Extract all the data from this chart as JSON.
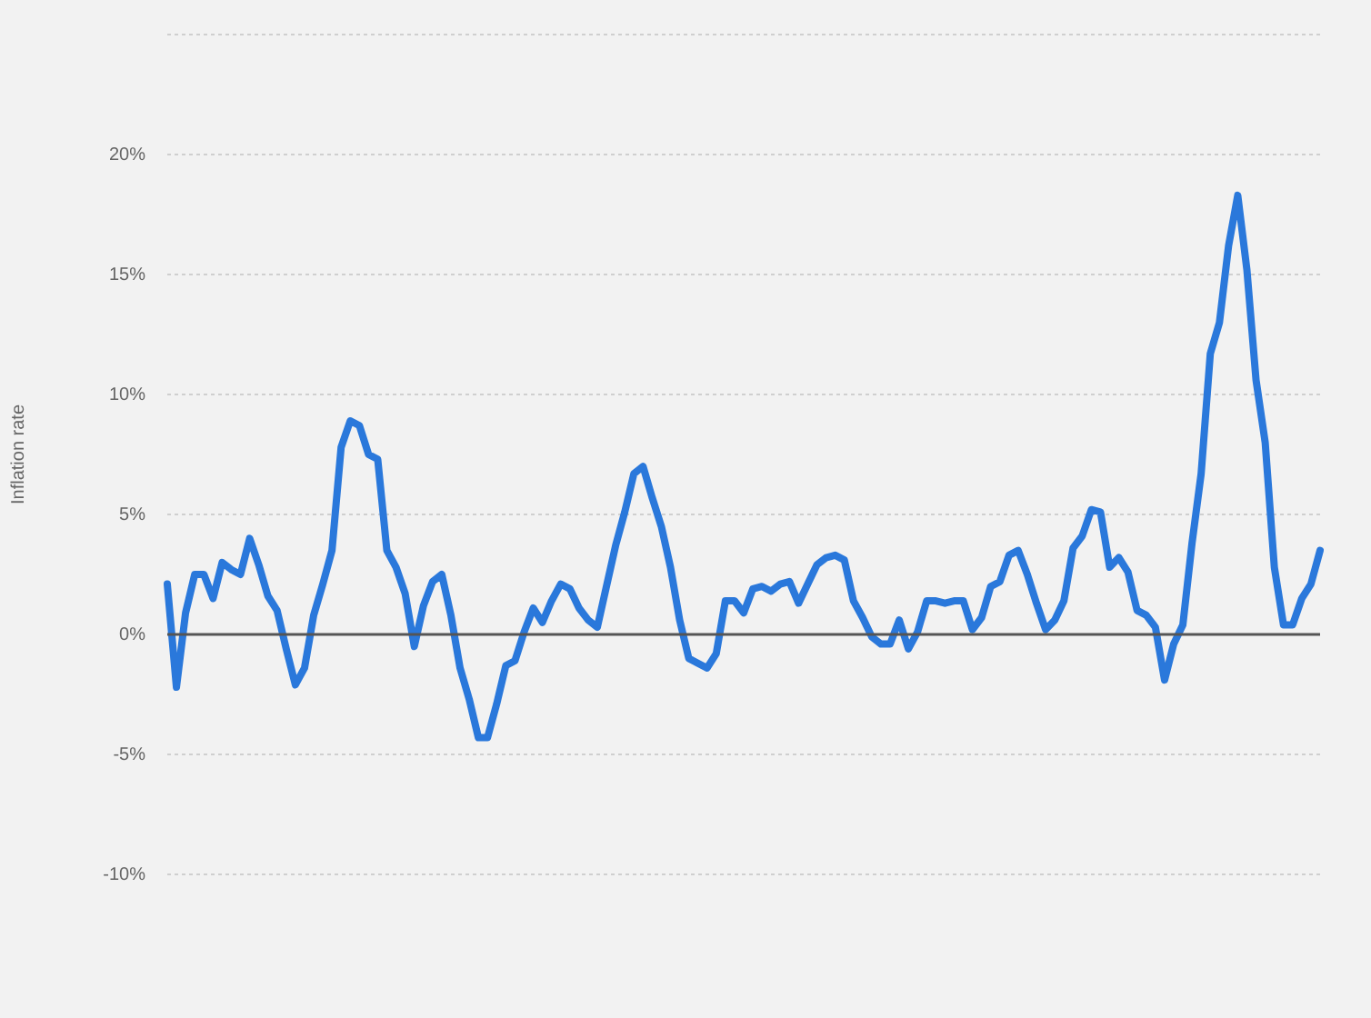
{
  "chart_data": {
    "type": "line",
    "ylabel": "Inflation rate",
    "categories": [
      null,
      null,
      null,
      null,
      null,
      null,
      null,
      null,
      null,
      null,
      null,
      null,
      null,
      null,
      null,
      null,
      null,
      null,
      null,
      null,
      null,
      null,
      null,
      null,
      null,
      null,
      null,
      null,
      null,
      null,
      null,
      null,
      null,
      null,
      null,
      null,
      null,
      null,
      null,
      null,
      null,
      null,
      null,
      null,
      null,
      null,
      null,
      null,
      null,
      null,
      null,
      null,
      null,
      null,
      null,
      null,
      null,
      null,
      null,
      null,
      null,
      null,
      null,
      null,
      null,
      null,
      null,
      null,
      null,
      null,
      null,
      null,
      null,
      null,
      null,
      null,
      null,
      null,
      null,
      null,
      null,
      null,
      null,
      null,
      null,
      null,
      null,
      null,
      null,
      null,
      null,
      null,
      null,
      null,
      null,
      null,
      null,
      null,
      null,
      null,
      null,
      null,
      null,
      null,
      null,
      null,
      null,
      null,
      null,
      null,
      null,
      null,
      null,
      null,
      null,
      null,
      null,
      null,
      null,
      null,
      null,
      null,
      null,
      null,
      null,
      null,
      null
    ],
    "series": [
      {
        "color": "#2a78db",
        "values": [
          2.1,
          -2.2,
          0.9,
          2.5,
          2.5,
          1.5,
          3.0,
          2.7,
          2.5,
          4.0,
          2.9,
          1.6,
          1.0,
          -0.6,
          -2.1,
          -1.4,
          0.8,
          2.1,
          3.5,
          7.8,
          8.9,
          8.7,
          7.5,
          7.3,
          3.5,
          2.8,
          1.7,
          -0.5,
          1.2,
          2.2,
          2.5,
          0.8,
          -1.4,
          -2.7,
          -4.3,
          -4.3,
          -2.9,
          -1.3,
          -1.1,
          0.1,
          1.1,
          0.5,
          1.4,
          2.1,
          1.9,
          1.1,
          0.6,
          0.3,
          2.0,
          3.7,
          5.1,
          6.7,
          7.0,
          5.7,
          4.5,
          2.8,
          0.6,
          -1.0,
          -1.2,
          -1.4,
          -0.8,
          1.4,
          1.4,
          0.9,
          1.9,
          2.0,
          1.8,
          2.1,
          2.2,
          1.3,
          2.1,
          2.9,
          3.2,
          3.3,
          3.1,
          1.4,
          0.7,
          -0.1,
          -0.4,
          -0.4,
          0.6,
          -0.6,
          0.1,
          1.4,
          1.4,
          1.3,
          1.4,
          1.4,
          0.2,
          0.7,
          2.0,
          2.2,
          3.3,
          3.5,
          2.5,
          1.3,
          0.2,
          0.6,
          1.4,
          3.6,
          4.1,
          5.2,
          5.1,
          2.8,
          3.2,
          2.6,
          1.0,
          0.8,
          0.3,
          -1.9,
          -0.4,
          0.4,
          3.8,
          6.7,
          11.7,
          13.0,
          16.2,
          18.3,
          15.2,
          10.6,
          8.0,
          2.8,
          0.4,
          0.4,
          1.5,
          2.1,
          3.5
        ]
      }
    ],
    "ylim": [
      -10,
      25
    ],
    "yticks": [
      {
        "value": -10,
        "label": "-10%"
      },
      {
        "value": -5,
        "label": "-5%"
      },
      {
        "value": 0,
        "label": "0%"
      },
      {
        "value": 5,
        "label": "5%"
      },
      {
        "value": 10,
        "label": "10%"
      },
      {
        "value": 15,
        "label": "15%"
      },
      {
        "value": 20,
        "label": "20%"
      },
      {
        "value": 25,
        "label": null
      }
    ],
    "ref_lines": [
      {
        "axis": "y",
        "value": 0,
        "color": "#555555"
      }
    ],
    "grid": "y",
    "legend": false,
    "marker": "none",
    "line_style": "solid",
    "tick_labels": "y"
  }
}
